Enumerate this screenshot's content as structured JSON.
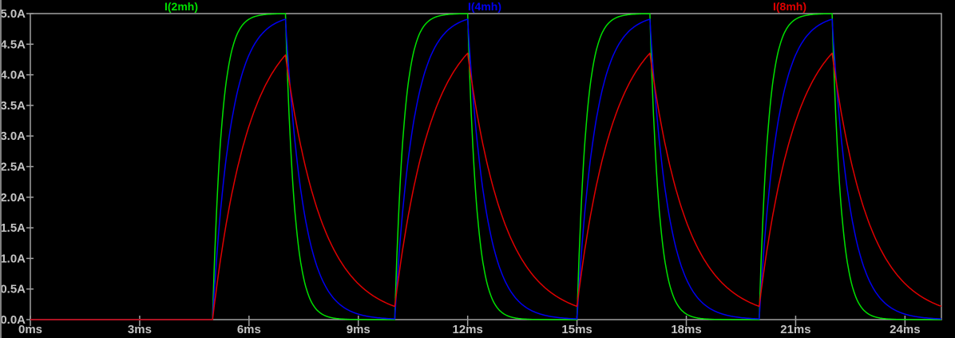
{
  "window": {
    "background": "#000000",
    "left_border_color": "#808080"
  },
  "chart_data": {
    "type": "line",
    "title": "",
    "grid": false,
    "legend_position": "top",
    "background": "#000000",
    "axis_color": "#a0a0a0",
    "tick_label_color": "#c4c4c4",
    "x_axis": {
      "unit": "ms",
      "min": 0,
      "max": 25,
      "tick_step": 3,
      "tick_labels": [
        "0ms",
        "3ms",
        "6ms",
        "9ms",
        "12ms",
        "15ms",
        "18ms",
        "21ms",
        "24ms"
      ]
    },
    "y_axis": {
      "unit": "A",
      "min": 0,
      "max": 5,
      "tick_step": 0.5,
      "tick_labels": [
        "0.0A",
        "0.5A",
        "1.0A",
        "1.5A",
        "2.0A",
        "2.5A",
        "3.0A",
        "3.5A",
        "4.0A",
        "4.5A",
        "5.0A"
      ]
    },
    "drive_pulse": {
      "first_rise_ms": 5,
      "on_time_ms": 2,
      "period_ms": 5,
      "pulse_count": 4,
      "target_A": 5
    },
    "series": [
      {
        "name": "I(2mh)",
        "color": "#00e000",
        "tau_ms": 0.25,
        "peak_A": 5.0,
        "value_at_end_A": 0.0
      },
      {
        "name": "I(4mh)",
        "color": "#0000f0",
        "tau_ms": 0.5,
        "peak_A": 4.91,
        "value_at_end_A": 0.01
      },
      {
        "name": "I(8mh)",
        "color": "#e00000",
        "tau_ms": 1.0,
        "peak_A": 4.33,
        "value_at_end_A": 0.22
      }
    ]
  }
}
